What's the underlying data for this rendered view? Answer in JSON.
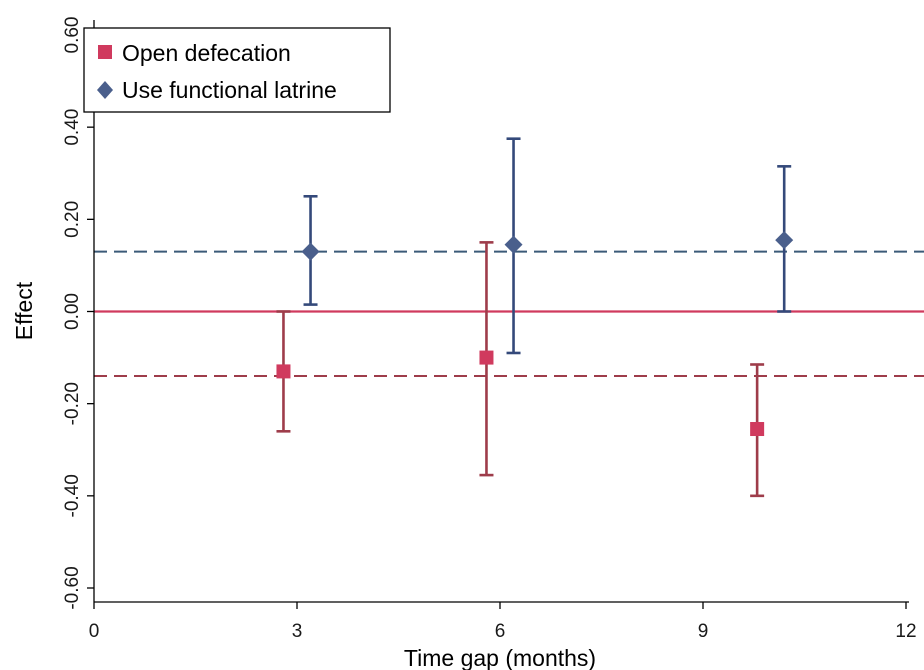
{
  "chart_data": {
    "type": "scatter",
    "xlabel": "Time gap (months)",
    "ylabel": "Effect",
    "xlim": [
      0,
      12
    ],
    "ylim": [
      -0.6,
      0.6
    ],
    "xticks": [
      {
        "value": 0,
        "label": "0"
      },
      {
        "value": 3,
        "label": "3"
      },
      {
        "value": 6,
        "label": "6"
      },
      {
        "value": 9,
        "label": "9"
      },
      {
        "value": 12,
        "label": "12"
      }
    ],
    "yticks": [
      {
        "value": 0.6,
        "label": "0.60"
      },
      {
        "value": 0.4,
        "label": "0.40"
      },
      {
        "value": 0.2,
        "label": "0.20"
      },
      {
        "value": 0.0,
        "label": "0.00"
      },
      {
        "value": -0.2,
        "label": "-0.20"
      },
      {
        "value": -0.4,
        "label": "-0.40"
      },
      {
        "value": -0.6,
        "label": "-0.60"
      }
    ],
    "grid": false,
    "legend_position": "top-left",
    "series": [
      {
        "name": "Open defecation",
        "marker": "square",
        "marker_color": "#d03a5e",
        "bar_color": "#9e3c4a",
        "points": [
          {
            "x": 2.8,
            "y": -0.13,
            "lo": -0.26,
            "hi": 0.0
          },
          {
            "x": 5.8,
            "y": -0.1,
            "lo": -0.355,
            "hi": 0.15
          },
          {
            "x": 9.8,
            "y": -0.255,
            "lo": -0.4,
            "hi": -0.115
          }
        ],
        "mean": -0.14,
        "mean_color": "#9e3c4a"
      },
      {
        "name": "Use functional latrine",
        "marker": "diamond",
        "marker_color": "#4a5f8c",
        "bar_color": "#34497a",
        "points": [
          {
            "x": 3.2,
            "y": 0.13,
            "lo": 0.015,
            "hi": 0.25
          },
          {
            "x": 6.2,
            "y": 0.145,
            "lo": -0.09,
            "hi": 0.375
          },
          {
            "x": 10.2,
            "y": 0.155,
            "lo": 0.0,
            "hi": 0.315
          }
        ],
        "mean": 0.13,
        "mean_color": "#3b5a78"
      }
    ],
    "reference_line": {
      "y": 0.0,
      "color": "#d03a5e"
    }
  }
}
